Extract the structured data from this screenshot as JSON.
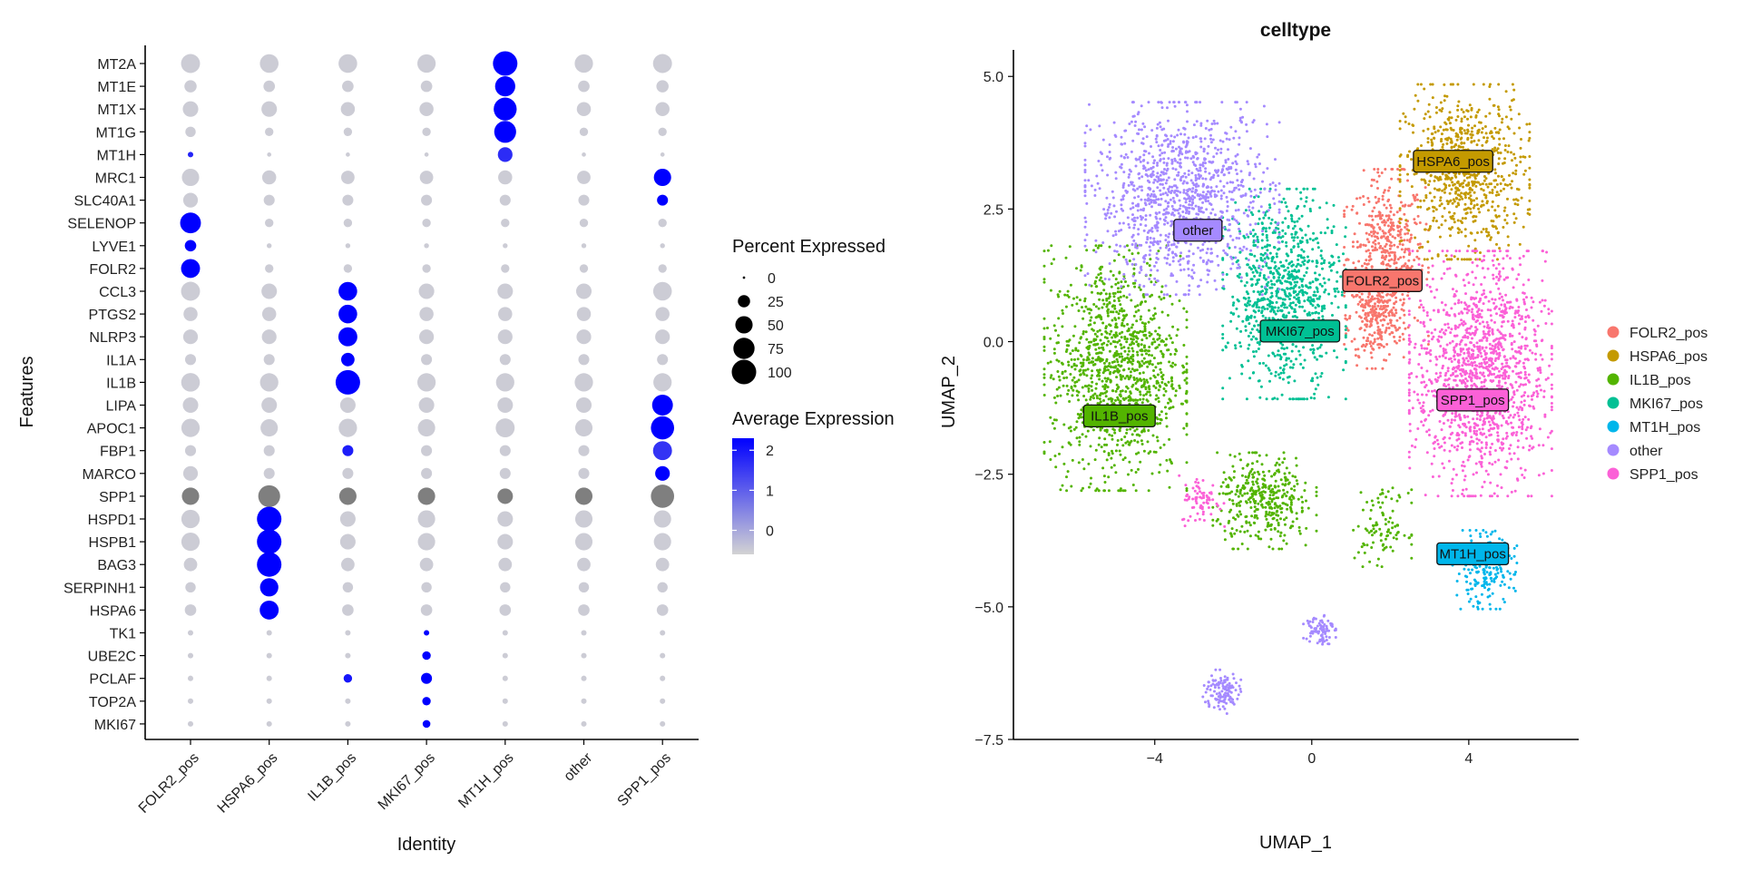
{
  "chart_data": [
    {
      "type": "dotplot",
      "xlabel": "Identity",
      "ylabel": "Features",
      "categories": [
        "FOLR2_pos",
        "HSPA6_pos",
        "IL1B_pos",
        "MKI67_pos",
        "MT1H_pos",
        "other",
        "SPP1_pos"
      ],
      "features": [
        "MT2A",
        "MT1E",
        "MT1X",
        "MT1G",
        "MT1H",
        "MRC1",
        "SLC40A1",
        "SELENOP",
        "LYVE1",
        "FOLR2",
        "CCL3",
        "PTGS2",
        "NLRP3",
        "IL1A",
        "IL1B",
        "LIPA",
        "APOC1",
        "FBP1",
        "MARCO",
        "SPP1",
        "HSPD1",
        "HSPB1",
        "BAG3",
        "SERPINH1",
        "HSPA6",
        "TK1",
        "UBE2C",
        "PCLAF",
        "TOP2A",
        "MKI67"
      ],
      "percent_expressed": [
        [
          60,
          58,
          58,
          56,
          100,
          56,
          60
        ],
        [
          25,
          22,
          22,
          22,
          68,
          22,
          25
        ],
        [
          40,
          40,
          33,
          33,
          88,
          33,
          33
        ],
        [
          18,
          12,
          12,
          12,
          80,
          12,
          12
        ],
        [
          5,
          3,
          3,
          3,
          36,
          3,
          3
        ],
        [
          50,
          33,
          30,
          30,
          33,
          30,
          50
        ],
        [
          36,
          20,
          20,
          20,
          20,
          20,
          20
        ],
        [
          72,
          12,
          12,
          12,
          12,
          12,
          12
        ],
        [
          22,
          4,
          4,
          4,
          4,
          4,
          4
        ],
        [
          60,
          12,
          12,
          12,
          12,
          12,
          12
        ],
        [
          60,
          40,
          58,
          40,
          40,
          40,
          58
        ],
        [
          33,
          33,
          58,
          33,
          33,
          33,
          33
        ],
        [
          36,
          36,
          60,
          36,
          36,
          36,
          36
        ],
        [
          20,
          20,
          30,
          20,
          20,
          20,
          20
        ],
        [
          58,
          56,
          100,
          56,
          56,
          56,
          56
        ],
        [
          40,
          40,
          40,
          40,
          40,
          40,
          72
        ],
        [
          56,
          50,
          56,
          50,
          60,
          50,
          90
        ],
        [
          20,
          20,
          20,
          20,
          20,
          20,
          60
        ],
        [
          36,
          20,
          20,
          20,
          20,
          20,
          36
        ],
        [
          50,
          80,
          50,
          50,
          40,
          50,
          90
        ],
        [
          56,
          100,
          40,
          50,
          40,
          50,
          50
        ],
        [
          56,
          100,
          40,
          50,
          40,
          50,
          50
        ],
        [
          30,
          100,
          30,
          30,
          30,
          30,
          30
        ],
        [
          18,
          56,
          18,
          18,
          18,
          18,
          18
        ],
        [
          22,
          60,
          22,
          22,
          22,
          22,
          22
        ],
        [
          5,
          5,
          5,
          5,
          5,
          5,
          5
        ],
        [
          5,
          5,
          5,
          12,
          5,
          5,
          5
        ],
        [
          5,
          5,
          12,
          20,
          5,
          5,
          5
        ],
        [
          5,
          5,
          5,
          12,
          5,
          5,
          5
        ],
        [
          5,
          5,
          5,
          10,
          5,
          5,
          5
        ]
      ],
      "average_expression": [
        [
          -0.5,
          -0.5,
          -0.5,
          -0.5,
          2.3,
          -0.5,
          -0.5
        ],
        [
          -0.5,
          -0.5,
          -0.5,
          -0.5,
          2.3,
          -0.5,
          -0.5
        ],
        [
          -0.5,
          -0.5,
          -0.5,
          -0.5,
          2.3,
          -0.5,
          -0.5
        ],
        [
          -0.5,
          -0.5,
          -0.5,
          -0.5,
          2.3,
          -0.5,
          -0.5
        ],
        [
          1.8,
          -0.5,
          -0.5,
          -0.5,
          1.7,
          -0.5,
          -0.5
        ],
        [
          -0.5,
          -0.5,
          -0.5,
          -0.5,
          -0.5,
          -0.5,
          2.3
        ],
        [
          -0.5,
          -0.5,
          -0.5,
          -0.5,
          -0.5,
          -0.5,
          2.3
        ],
        [
          2.3,
          -0.5,
          -0.5,
          -0.5,
          -0.5,
          -0.5,
          -0.5
        ],
        [
          2.3,
          -0.5,
          -0.5,
          -0.5,
          -0.5,
          -0.5,
          -0.5
        ],
        [
          2.3,
          -0.5,
          -0.5,
          -0.5,
          -0.5,
          -0.5,
          -0.5
        ],
        [
          -0.5,
          -0.5,
          2.3,
          -0.5,
          -0.5,
          -0.5,
          -0.5
        ],
        [
          -0.5,
          -0.5,
          2.3,
          -0.5,
          -0.5,
          -0.5,
          -0.5
        ],
        [
          -0.5,
          -0.5,
          2.3,
          -0.5,
          -0.5,
          -0.5,
          -0.5
        ],
        [
          -0.5,
          -0.5,
          2.3,
          -0.5,
          -0.5,
          -0.5,
          -0.5
        ],
        [
          -0.5,
          -0.5,
          2.3,
          -0.5,
          -0.5,
          -0.5,
          -0.5
        ],
        [
          -0.5,
          -0.5,
          -0.5,
          -0.5,
          -0.5,
          -0.5,
          2.3
        ],
        [
          -0.5,
          -0.5,
          -0.5,
          -0.5,
          -0.5,
          -0.5,
          2.3
        ],
        [
          -0.5,
          -0.5,
          1.9,
          -0.5,
          -0.5,
          -0.5,
          1.6
        ],
        [
          -0.5,
          -0.5,
          -0.5,
          -0.5,
          -0.5,
          -0.5,
          2.3
        ],
        [
          null,
          null,
          null,
          null,
          null,
          null,
          null
        ],
        [
          -0.5,
          2.3,
          -0.5,
          -0.5,
          -0.5,
          -0.5,
          -0.5
        ],
        [
          -0.5,
          2.3,
          -0.5,
          -0.5,
          -0.5,
          -0.5,
          -0.5
        ],
        [
          -0.5,
          2.3,
          -0.5,
          -0.5,
          -0.5,
          -0.5,
          -0.5
        ],
        [
          -0.5,
          2.3,
          -0.5,
          -0.5,
          -0.5,
          -0.5,
          -0.5
        ],
        [
          -0.5,
          2.3,
          -0.5,
          -0.5,
          -0.5,
          -0.5,
          -0.5
        ],
        [
          -0.5,
          -0.5,
          -0.5,
          2.3,
          -0.5,
          -0.5,
          -0.5
        ],
        [
          -0.5,
          -0.5,
          -0.5,
          2.3,
          -0.5,
          -0.5,
          -0.5
        ],
        [
          -0.5,
          -0.5,
          2.0,
          2.3,
          -0.5,
          -0.5,
          -0.5
        ],
        [
          -0.5,
          -0.5,
          -0.5,
          2.3,
          -0.5,
          -0.5,
          -0.5
        ],
        [
          -0.5,
          -0.5,
          -0.5,
          2.3,
          -0.5,
          -0.5,
          -0.5
        ]
      ],
      "size_legend": {
        "title": "Percent Expressed",
        "values": [
          0,
          25,
          50,
          75,
          100
        ],
        "labels": [
          "0",
          "25",
          "50",
          "75",
          "100"
        ]
      },
      "color_legend": {
        "title": "Average Expression",
        "ticks": [
          2,
          1,
          0
        ],
        "tick_labels": [
          "2",
          "1",
          "0"
        ],
        "range": [
          -0.6,
          2.3
        ],
        "low_color": "#d3d3d3",
        "high_color": "#0000ff"
      },
      "na_color": "#7f7f7f"
    },
    {
      "type": "scatter",
      "title": "celltype",
      "xlabel": "UMAP_1",
      "ylabel": "UMAP_2",
      "xlim": [
        -7.6,
        6.8
      ],
      "ylim": [
        -7.5,
        5.5
      ],
      "xticks": [
        -4,
        0,
        4
      ],
      "xtick_labels": [
        "−4",
        "0",
        "4"
      ],
      "yticks": [
        5,
        2.5,
        0,
        -2.5,
        -5,
        -7.5
      ],
      "ytick_labels": [
        "5.0",
        "2.5",
        "0.0",
        "−2.5",
        "−5.0",
        "−7.5"
      ],
      "legend_position": "right",
      "series": [
        {
          "name": "FOLR2_pos",
          "color": "#f8766d",
          "label": "FOLR2_pos",
          "label_xy": [
            1.8,
            1.15
          ]
        },
        {
          "name": "HSPA6_pos",
          "color": "#c49a00",
          "label": "HSPA6_pos",
          "label_xy": [
            3.6,
            3.4
          ]
        },
        {
          "name": "IL1B_pos",
          "color": "#53b400",
          "label": "IL1B_pos",
          "label_xy": [
            -4.9,
            -1.4
          ]
        },
        {
          "name": "MKI67_pos",
          "color": "#00c094",
          "label": "MKI67_pos",
          "label_xy": [
            -0.3,
            0.2
          ]
        },
        {
          "name": "MT1H_pos",
          "color": "#00b6eb",
          "label": "MT1H_pos",
          "label_xy": [
            4.1,
            -4.0
          ]
        },
        {
          "name": "other",
          "color": "#a58aff",
          "label": "other",
          "label_xy": [
            -2.9,
            2.1
          ]
        },
        {
          "name": "SPP1_pos",
          "color": "#fb61d7",
          "label": "SPP1_pos",
          "label_xy": [
            4.1,
            -1.1
          ]
        }
      ],
      "clusters": [
        {
          "series": 0,
          "center": [
            1.9,
            1.6
          ],
          "spread": [
            0.65,
            1.0
          ],
          "n": 500
        },
        {
          "series": 0,
          "center": [
            1.6,
            0.4
          ],
          "spread": [
            0.45,
            0.55
          ],
          "n": 200
        },
        {
          "series": 1,
          "center": [
            3.9,
            3.2
          ],
          "spread": [
            1.0,
            1.0
          ],
          "n": 750
        },
        {
          "series": 2,
          "center": [
            -5.0,
            -0.5
          ],
          "spread": [
            1.1,
            1.4
          ],
          "n": 1200
        },
        {
          "series": 2,
          "center": [
            -1.2,
            -3.0
          ],
          "spread": [
            0.8,
            0.55
          ],
          "n": 380
        },
        {
          "series": 2,
          "center": [
            1.8,
            -3.5
          ],
          "spread": [
            0.45,
            0.45
          ],
          "n": 100
        },
        {
          "series": 3,
          "center": [
            -0.7,
            0.9
          ],
          "spread": [
            0.95,
            1.2
          ],
          "n": 900
        },
        {
          "series": 4,
          "center": [
            4.4,
            -4.3
          ],
          "spread": [
            0.5,
            0.45
          ],
          "n": 220
        },
        {
          "series": 5,
          "center": [
            -3.3,
            2.7
          ],
          "spread": [
            1.5,
            1.1
          ],
          "n": 1150
        },
        {
          "series": 5,
          "center": [
            0.2,
            -5.4
          ],
          "spread": [
            0.25,
            0.2
          ],
          "n": 80
        },
        {
          "series": 5,
          "center": [
            -2.3,
            -6.6
          ],
          "spread": [
            0.3,
            0.25
          ],
          "n": 120
        },
        {
          "series": 6,
          "center": [
            4.3,
            -0.6
          ],
          "spread": [
            1.1,
            1.4
          ],
          "n": 1400
        },
        {
          "series": 6,
          "center": [
            -2.8,
            -3.0
          ],
          "spread": [
            0.35,
            0.3
          ],
          "n": 70
        }
      ]
    }
  ]
}
